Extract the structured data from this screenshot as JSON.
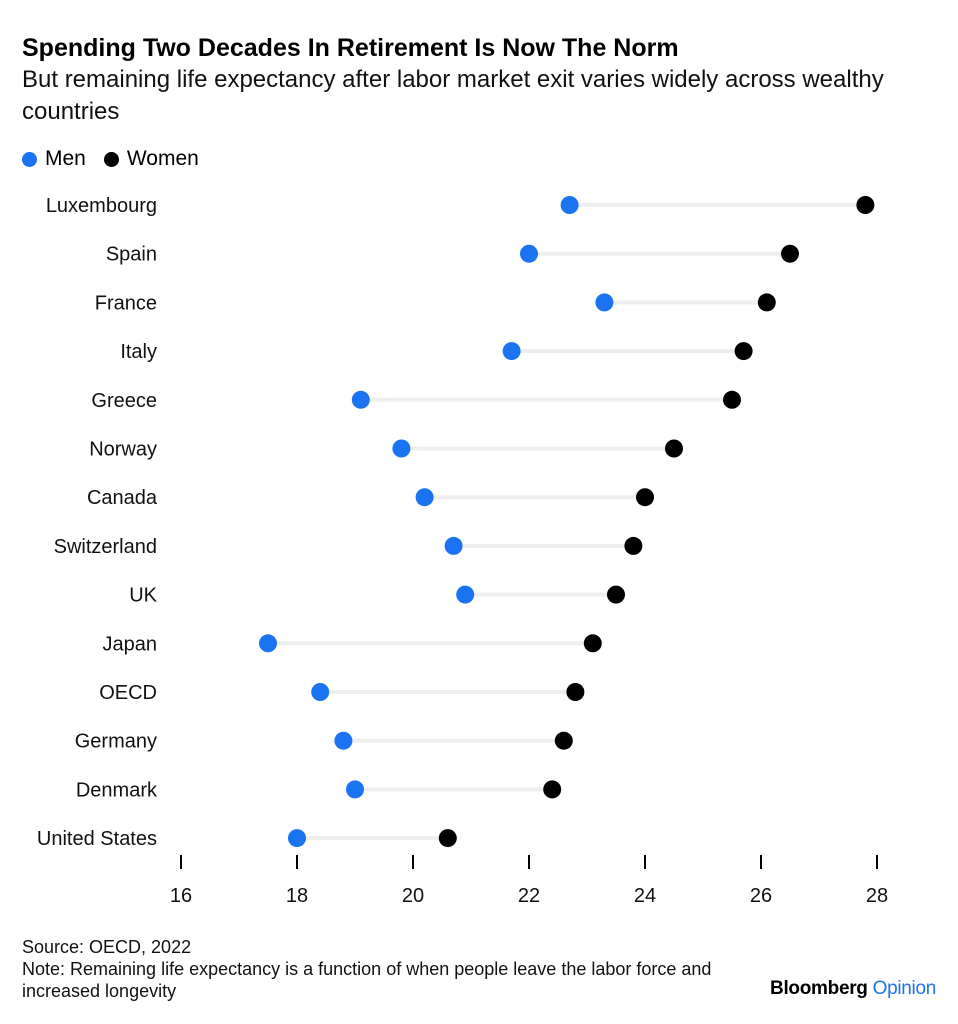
{
  "title": "Spending Two Decades In Retirement Is Now The Norm",
  "subtitle": "But remaining life expectancy after labor market exit varies widely across wealthy countries",
  "legend": {
    "men_label": "Men",
    "women_label": "Women"
  },
  "colors": {
    "men": "#1a73f0",
    "women": "#000000",
    "connector": "#eeeeee"
  },
  "chart_data": {
    "type": "dumbbell",
    "categories": [
      "Luxembourg",
      "Spain",
      "France",
      "Italy",
      "Greece",
      "Norway",
      "Canada",
      "Switzerland",
      "UK",
      "Japan",
      "OECD",
      "Germany",
      "Denmark",
      "United States"
    ],
    "series": [
      {
        "name": "Men",
        "values": [
          22.7,
          22.0,
          23.3,
          21.7,
          19.1,
          19.8,
          20.2,
          20.7,
          20.9,
          17.5,
          18.4,
          18.8,
          19.0,
          18.0
        ]
      },
      {
        "name": "Women",
        "values": [
          27.8,
          26.5,
          26.1,
          25.7,
          25.5,
          24.5,
          24.0,
          23.8,
          23.5,
          23.1,
          22.8,
          22.6,
          22.4,
          20.6
        ]
      }
    ],
    "xlim": [
      16,
      28
    ],
    "xticks": [
      "16",
      "18",
      "20",
      "22",
      "24",
      "26",
      "28"
    ],
    "grid": false,
    "legend_position": "top-left"
  },
  "footer": {
    "source": "Source: OECD, 2022",
    "note": "Note: Remaining life expectancy is a function of when people leave the labor force and increased longevity"
  },
  "brand": {
    "name": "Bloomberg",
    "section": "Opinion",
    "section_color": "#1a73f0"
  }
}
